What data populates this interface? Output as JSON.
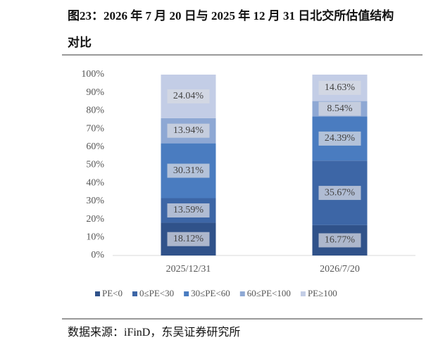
{
  "chart_data": {
    "type": "stacked_bar",
    "title": "图23：2026 年 7 月 20 日与 2025 年 12 月 31 日北交所估值结构对比",
    "source": "数据来源：iFinD，东吴证券研究所",
    "categories": [
      "2025/12/31",
      "2026/7/20"
    ],
    "series": [
      {
        "name": "PE<0",
        "color": "#30528a",
        "values": [
          18.12,
          16.77
        ],
        "value_labels": [
          "18.12%",
          "16.77%"
        ]
      },
      {
        "name": "0≤PE<30",
        "color": "#3d66a6",
        "values": [
          13.59,
          35.67
        ],
        "value_labels": [
          "13.59%",
          "35.67%"
        ]
      },
      {
        "name": "30≤PE<60",
        "color": "#4a7cc0",
        "values": [
          30.31,
          24.39
        ],
        "value_labels": [
          "30.31%",
          "24.39%"
        ]
      },
      {
        "name": "60≤PE<100",
        "color": "#8ea8d4",
        "values": [
          13.94,
          8.54
        ],
        "value_labels": [
          "13.94%",
          "8.54%"
        ]
      },
      {
        "name": "PE≥100",
        "color": "#c3cde6",
        "values": [
          24.04,
          14.63
        ],
        "value_labels": [
          "24.04%",
          "14.63%"
        ]
      }
    ],
    "ylim": [
      0,
      100
    ],
    "yticks": [
      {
        "value": 0,
        "label": "0%"
      },
      {
        "value": 10,
        "label": "10%"
      },
      {
        "value": 20,
        "label": "20%"
      },
      {
        "value": 30,
        "label": "30%"
      },
      {
        "value": 40,
        "label": "40%"
      },
      {
        "value": 50,
        "label": "50%"
      },
      {
        "value": 60,
        "label": "60%"
      },
      {
        "value": 70,
        "label": "70%"
      },
      {
        "value": 80,
        "label": "80%"
      },
      {
        "value": 90,
        "label": "90%"
      },
      {
        "value": 100,
        "label": "100%"
      }
    ],
    "legend": "bottom"
  }
}
